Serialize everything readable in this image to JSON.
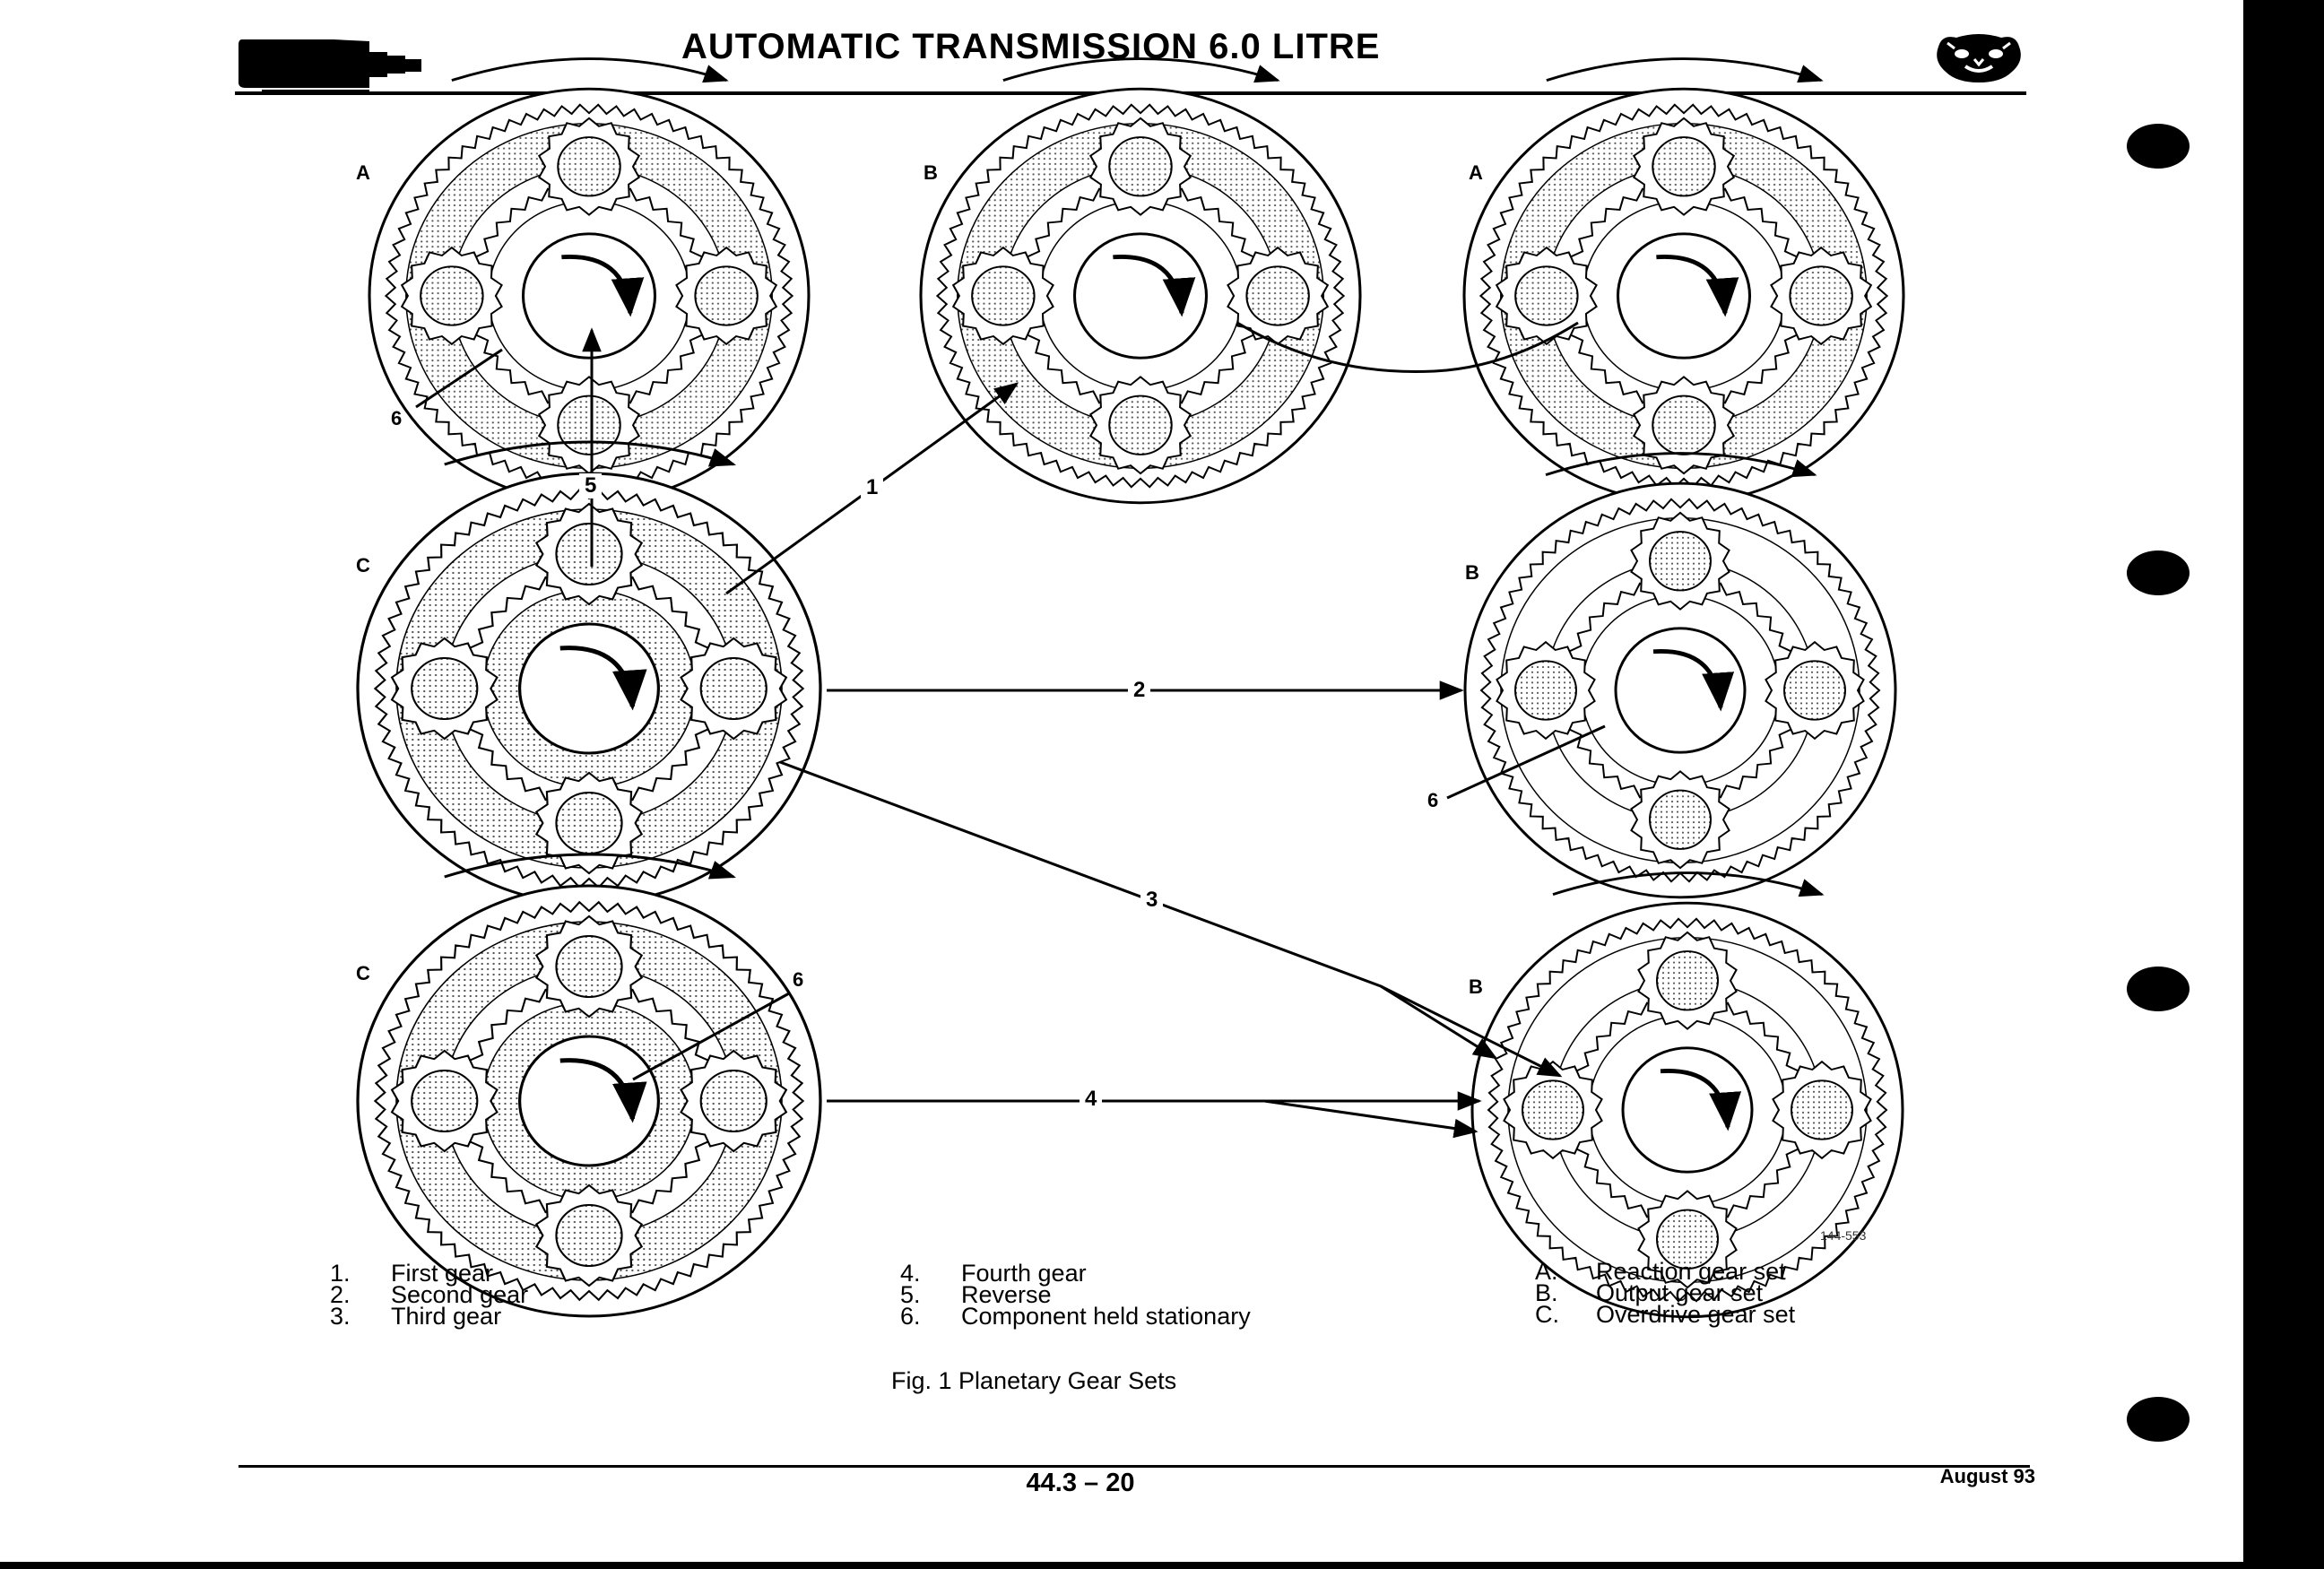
{
  "header": {
    "title": "AUTOMATIC TRANSMISSION 6.0 LITRE"
  },
  "figure": {
    "panels": [
      {
        "label": "A"
      },
      {
        "label": "B"
      },
      {
        "label": "A"
      },
      {
        "label": "C"
      },
      {
        "label": "B"
      },
      {
        "label": "C"
      },
      {
        "label": "B"
      }
    ],
    "arrow_labels": [
      "1",
      "2",
      "3",
      "4",
      "5"
    ],
    "stationary_labels": [
      "6",
      "6",
      "6"
    ],
    "reference_code": "144-553",
    "caption": "Fig. 1 Planetary Gear Sets"
  },
  "legend": {
    "gears": [
      {
        "key": "1.",
        "text": "First gear"
      },
      {
        "key": "2.",
        "text": "Second gear"
      },
      {
        "key": "3.",
        "text": "Third gear"
      }
    ],
    "gears2": [
      {
        "key": "4.",
        "text": "Fourth gear"
      },
      {
        "key": "5.",
        "text": "Reverse"
      },
      {
        "key": "6.",
        "text": "Component held stationary"
      }
    ],
    "sets": [
      {
        "key": "A.",
        "text": "Reaction gear set"
      },
      {
        "key": "B.",
        "text": "Output gear set"
      },
      {
        "key": "C.",
        "text": "Overdrive gear set"
      }
    ]
  },
  "footer": {
    "page_number": "44.3 – 20",
    "date": "August 93"
  },
  "icons": [
    "transmission-logo-icon",
    "jaguar-head-logo-icon"
  ]
}
